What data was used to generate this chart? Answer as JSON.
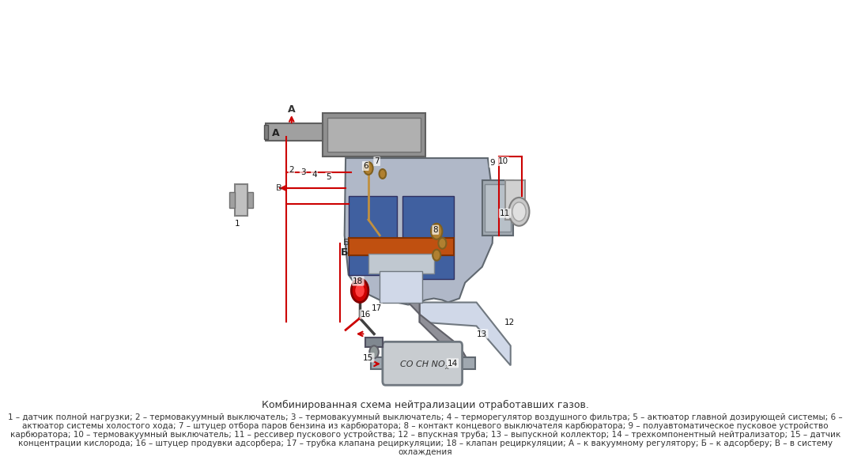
{
  "title": "Комбинированная схема нейтрализации отработавших газов.",
  "description_lines": [
    "1 – датчик полной нагрузки; 2 – термовакуумный выключатель; 3 – термовакуумный выключатель; 4 – терморегулятор воздушного фильтра; 5 – актюатор главной дозирующей системы; 6 –",
    "актюатор системы холостого хода; 7 – штуцер отбора паров бензина из карбюратора; 8 – контакт концевого выключателя карбюратора; 9 – полуавтоматическое пусковое устройство",
    "карбюратора; 10 – термовакуумный выключатель; 11 – рессивер пускового устройства; 12 – впускная труба; 13 – выпускной коллектор; 14 – трехкомпонентный нейтрализатор; 15 – датчик",
    "концентрации кислорода; 16 – штуцер продувки адсорбера; 17 – трубка клапана рециркуляции; 18 – клапан рециркуляции; А – к вакуумному регулятору; Б – к адсорберу; В – в систему",
    "охлаждения"
  ],
  "bg_color": "#ffffff",
  "title_fontsize": 9,
  "desc_fontsize": 7.5,
  "title_color": "#333333",
  "desc_color": "#333333"
}
